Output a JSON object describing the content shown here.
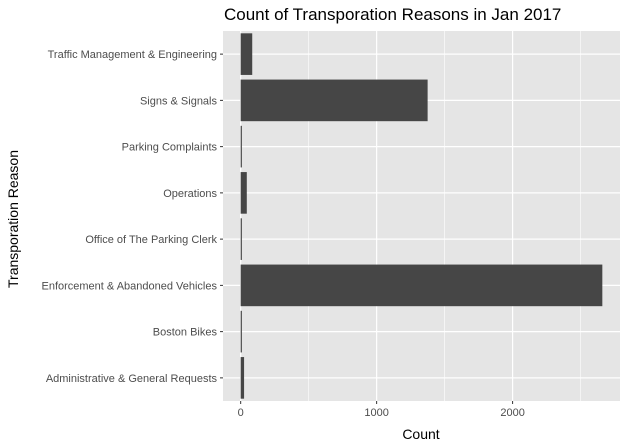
{
  "chart_data": {
    "type": "bar",
    "orientation": "horizontal",
    "title": "Count of Transporation Reasons in Jan 2017",
    "xlabel": "Count",
    "ylabel": "Transporation Reason",
    "categories": [
      "Administrative & General Requests",
      "Boston Bikes",
      "Enforcement & Abandoned Vehicles",
      "Office of The Parking Clerk",
      "Operations",
      "Parking Complaints",
      "Signs & Signals",
      "Traffic Management & Engineering"
    ],
    "values": [
      25,
      3,
      2660,
      4,
      45,
      6,
      1375,
      85
    ],
    "xlim": [
      -130,
      2790
    ],
    "xticks": [
      0,
      1000,
      2000
    ],
    "xtick_labels": [
      "0",
      "1000",
      "2000"
    ],
    "grid": true,
    "legend": "none",
    "colors": {
      "panel_background": "#e5e5e5",
      "grid": "#ffffff",
      "bar": "#464646"
    }
  }
}
